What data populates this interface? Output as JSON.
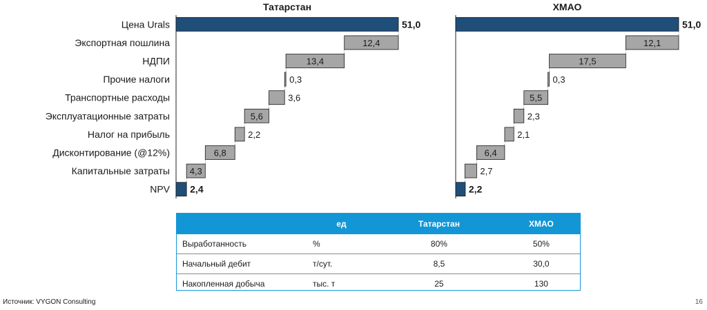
{
  "chart_data": [
    {
      "type": "bar",
      "subtype": "waterfall",
      "title": "Татарстан",
      "categories": [
        "Цена Urals",
        "Экспортная пошлина",
        "НДПИ",
        "Прочие налоги",
        "Транспортные расходы",
        "Эксплуатационные затраты",
        "Налог на прибыль",
        "Дисконтирование (@12%)",
        "Капитальные затраты",
        "NPV"
      ],
      "values": [
        51.0,
        12.4,
        13.4,
        0.3,
        3.6,
        5.6,
        2.2,
        6.8,
        4.3,
        2.4
      ],
      "labels": [
        "51,0",
        "12,4",
        "13,4",
        "0,3",
        "3,6",
        "5,6",
        "2,2",
        "6,8",
        "4,3",
        "2,4"
      ],
      "kinds": [
        "total",
        "decrease",
        "decrease",
        "decrease",
        "decrease",
        "decrease",
        "decrease",
        "decrease",
        "decrease",
        "total"
      ],
      "xlim": [
        0,
        51
      ]
    },
    {
      "type": "bar",
      "subtype": "waterfall",
      "title": "ХМАО",
      "categories": [
        "Цена Urals",
        "Экспортная пошлина",
        "НДПИ",
        "Прочие налоги",
        "Транспортные расходы",
        "Эксплуатационные затраты",
        "Налог на прибыль",
        "Дисконтирование (@12%)",
        "Капитальные затраты",
        "NPV"
      ],
      "values": [
        51.0,
        12.1,
        17.5,
        0.3,
        5.5,
        2.3,
        2.1,
        6.4,
        2.7,
        2.2
      ],
      "labels": [
        "51,0",
        "12,1",
        "17,5",
        "0,3",
        "5,5",
        "2,3",
        "2,1",
        "6,4",
        "2,7",
        "2,2"
      ],
      "kinds": [
        "total",
        "decrease",
        "decrease",
        "decrease",
        "decrease",
        "decrease",
        "decrease",
        "decrease",
        "decrease",
        "total"
      ],
      "xlim": [
        0,
        51
      ]
    }
  ],
  "colors": {
    "total": "#1f4e79",
    "decrease": "#a6a6a6",
    "header": "#1396d6"
  },
  "table": {
    "headers": [
      "",
      "ед",
      "Татарстан",
      "ХМАО"
    ],
    "rows": [
      [
        "Выработанность",
        "%",
        "80%",
        "50%"
      ],
      [
        "Начальный дебит",
        "т/сут.",
        "8,5",
        "30,0"
      ],
      [
        "Накопленная добыча",
        "тыс. т",
        "25",
        "130"
      ]
    ]
  },
  "footer": {
    "source": "Источник: VYGON Consulting",
    "page": "16"
  }
}
